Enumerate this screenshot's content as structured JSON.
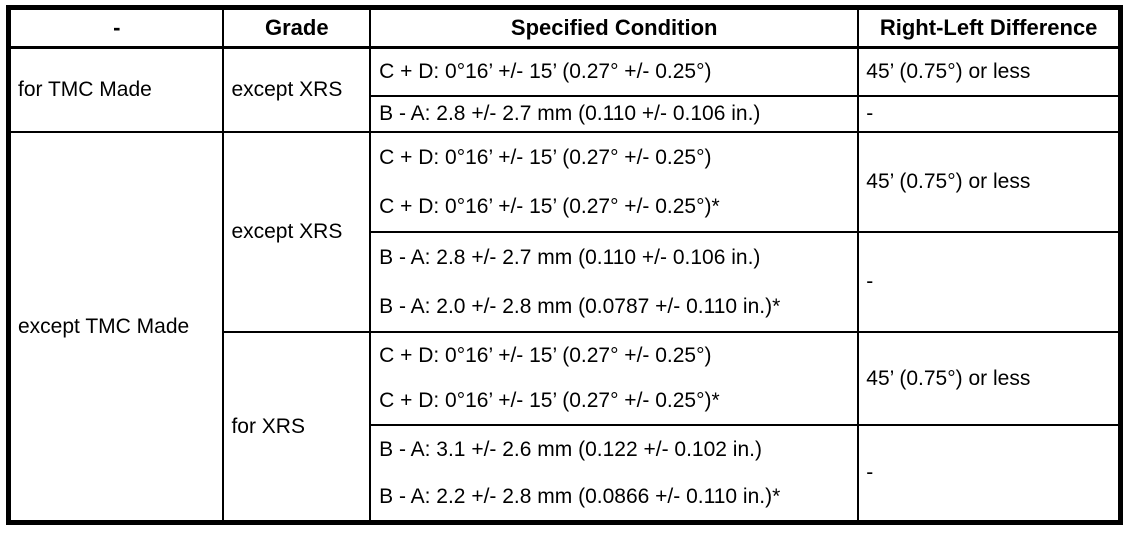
{
  "table": {
    "headers": {
      "col1": "-",
      "col2": "Grade",
      "col3": "Specified Condition",
      "col4": "Right-Left Difference"
    },
    "sections": [
      {
        "made": "for TMC Made",
        "grades": [
          {
            "grade": "except XRS",
            "groups": [
              {
                "conditions": [
                  "C + D: 0°16’ +/- 15’ (0.27° +/- 0.25°)"
                ],
                "difference": "45’ (0.75°) or less"
              },
              {
                "conditions": [
                  "B - A: 2.8 +/- 2.7 mm (0.110 +/- 0.106 in.)"
                ],
                "difference": "-"
              }
            ]
          }
        ]
      },
      {
        "made": "except TMC Made",
        "grades": [
          {
            "grade": "except XRS",
            "groups": [
              {
                "conditions": [
                  "C + D: 0°16’ +/- 15’ (0.27° +/- 0.25°)",
                  "C + D: 0°16’ +/- 15’ (0.27° +/- 0.25°)*"
                ],
                "difference": "45’ (0.75°) or less"
              },
              {
                "conditions": [
                  "B - A: 2.8 +/- 2.7 mm (0.110 +/- 0.106 in.)",
                  "B - A: 2.0 +/- 2.8 mm (0.0787 +/- 0.110 in.)*"
                ],
                "difference": "-"
              }
            ]
          },
          {
            "grade": "for XRS",
            "groups": [
              {
                "conditions": [
                  "C + D: 0°16’ +/- 15’ (0.27° +/- 0.25°)",
                  "C + D: 0°16’ +/- 15’ (0.27° +/- 0.25°)*"
                ],
                "difference": "45’ (0.75°) or less"
              },
              {
                "conditions": [
                  "B - A: 3.1 +/- 2.6 mm (0.122 +/- 0.102 in.)",
                  "B - A: 2.2 +/- 2.8 mm (0.0866 +/- 0.110 in.)*"
                ],
                "difference": "-"
              }
            ]
          }
        ]
      }
    ],
    "colors": {
      "border": "#000000",
      "text": "#000000",
      "background": "#ffffff"
    }
  }
}
